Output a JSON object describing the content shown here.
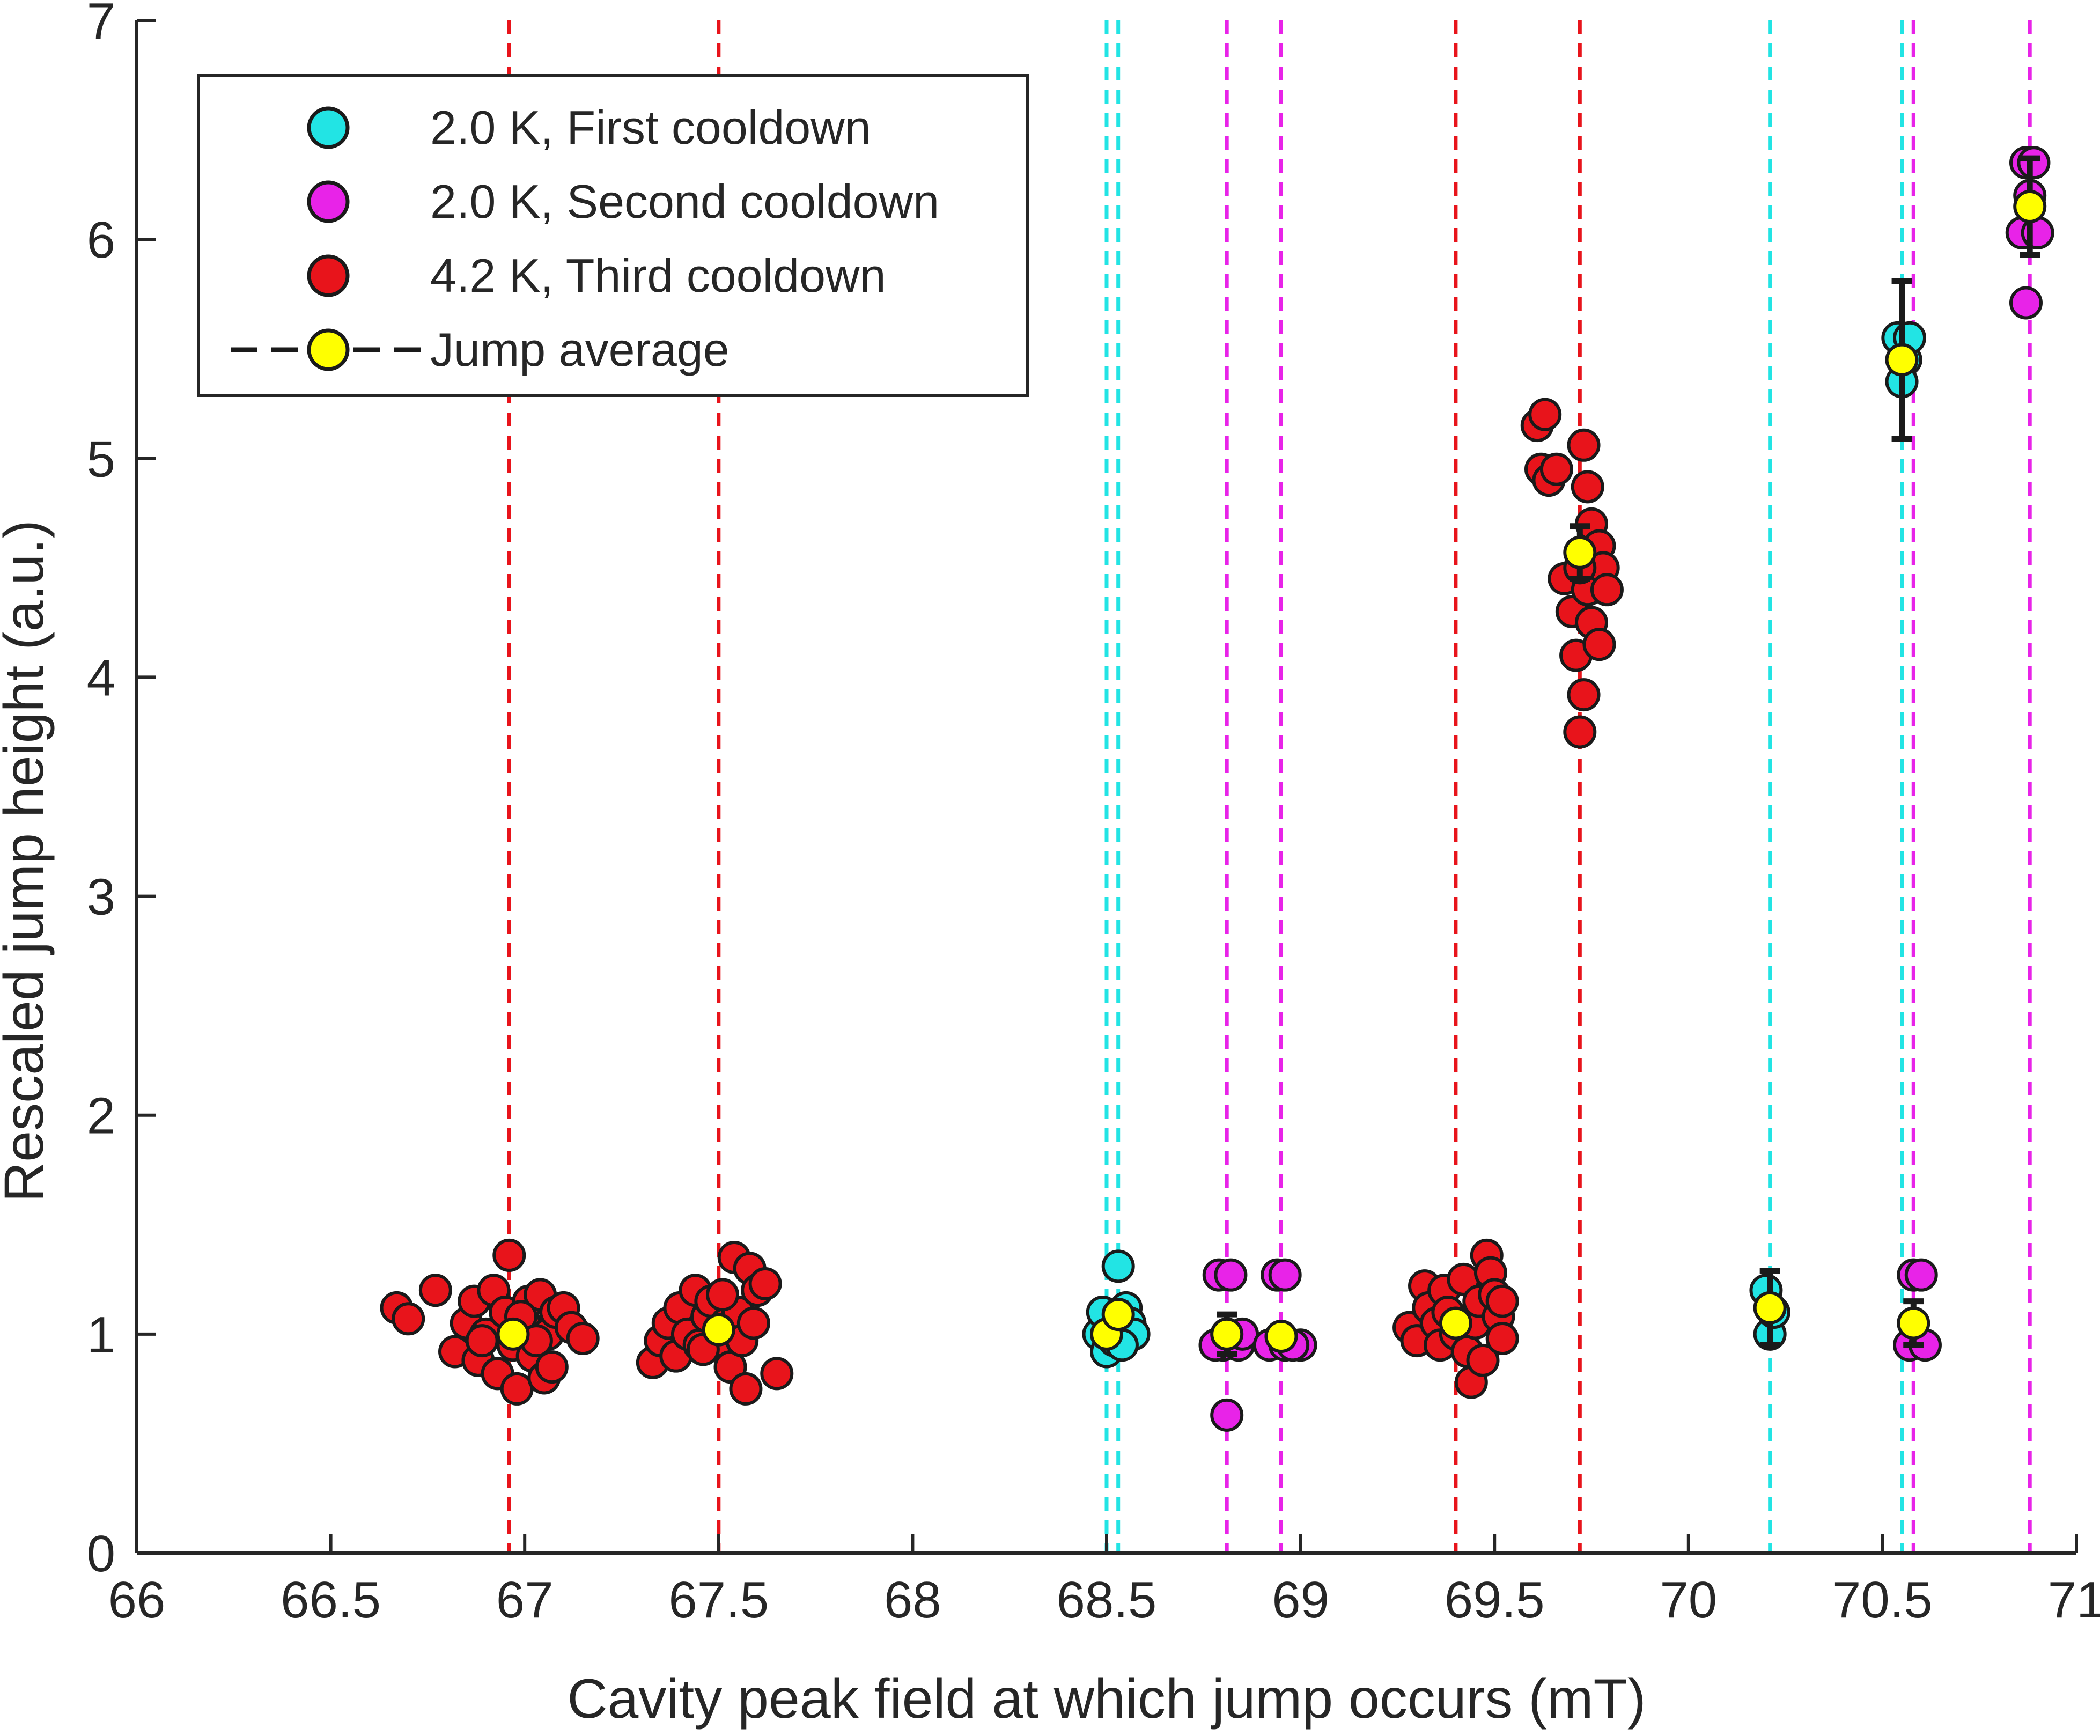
{
  "chart_data": {
    "type": "scatter",
    "title": "",
    "xlabel": "Cavity peak field at which jump occurs (mT)",
    "ylabel": "Rescaled jump height (a.u.)",
    "xlim": [
      66,
      71
    ],
    "ylim": [
      0,
      7
    ],
    "grid": false,
    "legend_position": "top-left",
    "xticks": [
      66,
      66.5,
      67,
      67.5,
      68,
      68.5,
      69,
      69.5,
      70,
      70.5,
      71
    ],
    "xtick_labels": [
      "66",
      "66.5",
      "67",
      "67.5",
      "68",
      "68.5",
      "69",
      "69.5",
      "70",
      "70.5",
      "71"
    ],
    "yticks": [
      0,
      1,
      2,
      3,
      4,
      5,
      6,
      7
    ],
    "ytick_labels": [
      "0",
      "1",
      "2",
      "3",
      "4",
      "5",
      "6",
      "7"
    ],
    "vlines": [
      {
        "x": 66.96,
        "color": "#e8141b"
      },
      {
        "x": 67.5,
        "color": "#e8141b"
      },
      {
        "x": 68.5,
        "color": "#22e4e4"
      },
      {
        "x": 68.53,
        "color": "#22e4e4"
      },
      {
        "x": 68.81,
        "color": "#e823e8"
      },
      {
        "x": 68.95,
        "color": "#e823e8"
      },
      {
        "x": 69.4,
        "color": "#e8141b"
      },
      {
        "x": 69.72,
        "color": "#e8141b"
      },
      {
        "x": 70.21,
        "color": "#22e4e4"
      },
      {
        "x": 70.55,
        "color": "#22e4e4"
      },
      {
        "x": 70.58,
        "color": "#e823e8"
      },
      {
        "x": 70.88,
        "color": "#e823e8"
      }
    ],
    "series": [
      {
        "name": "2.0 K, First cooldown",
        "color": "#22e4e4",
        "points": [
          [
            68.48,
            1.0
          ],
          [
            68.5,
            0.92
          ],
          [
            68.51,
            1.08
          ],
          [
            68.52,
            0.97
          ],
          [
            68.53,
            1.31
          ],
          [
            68.55,
            1.12
          ],
          [
            68.56,
            1.05
          ],
          [
            68.57,
            1.0
          ],
          [
            68.54,
            0.95
          ],
          [
            68.49,
            1.1
          ],
          [
            70.2,
            1.2
          ],
          [
            70.21,
            1.0
          ],
          [
            70.22,
            1.1
          ],
          [
            70.54,
            5.55
          ],
          [
            70.56,
            5.45
          ],
          [
            70.55,
            5.35
          ],
          [
            70.57,
            5.55
          ]
        ]
      },
      {
        "name": "2.0 K, Second cooldown",
        "color": "#e823e8",
        "points": [
          [
            68.79,
            1.27
          ],
          [
            68.82,
            1.27
          ],
          [
            68.8,
            0.95
          ],
          [
            68.84,
            0.95
          ],
          [
            68.78,
            0.95
          ],
          [
            68.81,
            0.63
          ],
          [
            68.85,
            1.0
          ],
          [
            68.94,
            1.27
          ],
          [
            68.96,
            1.27
          ],
          [
            68.92,
            0.95
          ],
          [
            68.96,
            0.95
          ],
          [
            69.0,
            0.95
          ],
          [
            68.98,
            0.95
          ],
          [
            70.58,
            1.27
          ],
          [
            70.57,
            0.95
          ],
          [
            70.6,
            1.27
          ],
          [
            70.61,
            0.95
          ],
          [
            70.87,
            6.35
          ],
          [
            70.89,
            6.35
          ],
          [
            70.86,
            6.03
          ],
          [
            70.9,
            6.03
          ],
          [
            70.87,
            5.71
          ],
          [
            70.88,
            6.2
          ]
        ]
      },
      {
        "name": "4.2 K, Third cooldown",
        "color": "#e8141b",
        "points": [
          [
            66.67,
            1.12
          ],
          [
            66.7,
            1.07
          ],
          [
            66.77,
            1.2
          ],
          [
            66.82,
            0.92
          ],
          [
            66.85,
            1.05
          ],
          [
            66.87,
            1.15
          ],
          [
            66.88,
            0.88
          ],
          [
            66.9,
            1.0
          ],
          [
            66.92,
            1.2
          ],
          [
            66.93,
            0.82
          ],
          [
            66.95,
            1.1
          ],
          [
            66.96,
            1.36
          ],
          [
            66.97,
            0.95
          ],
          [
            66.98,
            0.75
          ],
          [
            67.0,
            1.05
          ],
          [
            67.01,
            1.15
          ],
          [
            67.02,
            0.9
          ],
          [
            67.04,
            1.18
          ],
          [
            67.05,
            0.8
          ],
          [
            67.06,
            1.0
          ],
          [
            67.07,
            0.85
          ],
          [
            67.08,
            1.1
          ],
          [
            67.1,
            1.12
          ],
          [
            67.12,
            1.03
          ],
          [
            67.15,
            0.98
          ],
          [
            66.89,
            0.97
          ],
          [
            66.99,
            1.08
          ],
          [
            67.03,
            0.97
          ],
          [
            67.33,
            0.87
          ],
          [
            67.35,
            0.97
          ],
          [
            67.37,
            1.05
          ],
          [
            67.39,
            0.9
          ],
          [
            67.4,
            1.12
          ],
          [
            67.42,
            1.0
          ],
          [
            67.44,
            1.2
          ],
          [
            67.45,
            0.95
          ],
          [
            67.47,
            1.08
          ],
          [
            67.48,
            1.15
          ],
          [
            67.5,
            0.97
          ],
          [
            67.52,
            1.05
          ],
          [
            67.53,
            0.85
          ],
          [
            67.54,
            1.35
          ],
          [
            67.55,
            1.1
          ],
          [
            67.56,
            0.97
          ],
          [
            67.57,
            0.75
          ],
          [
            67.58,
            1.3
          ],
          [
            67.59,
            1.05
          ],
          [
            67.6,
            1.2
          ],
          [
            67.62,
            1.23
          ],
          [
            67.65,
            0.82
          ],
          [
            67.46,
            0.93
          ],
          [
            67.51,
            1.18
          ],
          [
            69.28,
            1.03
          ],
          [
            69.3,
            0.97
          ],
          [
            69.32,
            1.22
          ],
          [
            69.33,
            1.12
          ],
          [
            69.35,
            1.05
          ],
          [
            69.36,
            0.95
          ],
          [
            69.37,
            1.2
          ],
          [
            69.38,
            1.1
          ],
          [
            69.4,
            1.0
          ],
          [
            69.42,
            1.25
          ],
          [
            69.43,
            0.92
          ],
          [
            69.44,
            0.78
          ],
          [
            69.45,
            1.05
          ],
          [
            69.46,
            1.15
          ],
          [
            69.47,
            0.88
          ],
          [
            69.48,
            1.36
          ],
          [
            69.49,
            1.28
          ],
          [
            69.5,
            1.18
          ],
          [
            69.51,
            1.08
          ],
          [
            69.52,
            0.98
          ],
          [
            69.52,
            1.15
          ],
          [
            69.61,
            5.15
          ],
          [
            69.63,
            5.2
          ],
          [
            69.62,
            4.95
          ],
          [
            69.64,
            4.9
          ],
          [
            69.66,
            4.95
          ],
          [
            69.68,
            4.45
          ],
          [
            69.7,
            4.3
          ],
          [
            69.71,
            4.1
          ],
          [
            69.72,
            3.75
          ],
          [
            69.73,
            3.92
          ],
          [
            69.74,
            4.4
          ],
          [
            69.75,
            4.7
          ],
          [
            69.76,
            4.55
          ],
          [
            69.73,
            5.06
          ],
          [
            69.74,
            4.87
          ],
          [
            69.77,
            4.6
          ],
          [
            69.78,
            4.5
          ],
          [
            69.75,
            4.25
          ],
          [
            69.77,
            4.15
          ],
          [
            69.79,
            4.4
          ],
          [
            69.72,
            4.5
          ]
        ]
      }
    ],
    "averages": {
      "name": "Jump average",
      "color": "#ffff00",
      "points": [
        {
          "x": 66.97,
          "y": 1.0,
          "err": 0.03
        },
        {
          "x": 67.5,
          "y": 1.02,
          "err": 0.03
        },
        {
          "x": 68.5,
          "y": 1.0,
          "err": 0.04
        },
        {
          "x": 68.53,
          "y": 1.09,
          "err": 0.05
        },
        {
          "x": 68.81,
          "y": 1.0,
          "err": 0.09
        },
        {
          "x": 68.95,
          "y": 0.99,
          "err": 0.04
        },
        {
          "x": 69.4,
          "y": 1.05,
          "err": 0.03
        },
        {
          "x": 69.72,
          "y": 4.57,
          "err": 0.12
        },
        {
          "x": 70.21,
          "y": 1.12,
          "err": 0.17
        },
        {
          "x": 70.55,
          "y": 5.45,
          "err": 0.36
        },
        {
          "x": 70.58,
          "y": 1.05,
          "err": 0.1
        },
        {
          "x": 70.88,
          "y": 6.15,
          "err": 0.22
        }
      ]
    }
  }
}
